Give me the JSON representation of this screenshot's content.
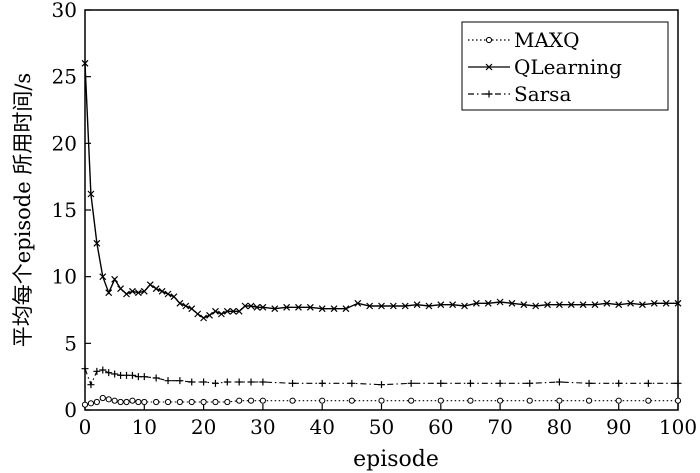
{
  "chart_data": {
    "type": "line",
    "title": "",
    "xlabel": "episode",
    "ylabel": "平均每个episode 所用时间/s",
    "xlim": [
      0,
      100
    ],
    "ylim": [
      0,
      30
    ],
    "xticks": [
      "0",
      "10",
      "20",
      "30",
      "40",
      "50",
      "60",
      "70",
      "80",
      "90",
      "100"
    ],
    "yticks": [
      "0",
      "5",
      "10",
      "15",
      "20",
      "25",
      "30"
    ],
    "grid": false,
    "legend_position": "top-right",
    "series": [
      {
        "name": "MAXQ",
        "marker": "circle",
        "dash": "dotted",
        "x": [
          0,
          1,
          2,
          3,
          4,
          5,
          6,
          7,
          8,
          9,
          10,
          12,
          14,
          16,
          18,
          20,
          22,
          24,
          26,
          28,
          30,
          35,
          40,
          45,
          50,
          55,
          60,
          65,
          70,
          75,
          80,
          85,
          90,
          95,
          100
        ],
        "y": [
          0.4,
          0.5,
          0.6,
          0.9,
          0.8,
          0.7,
          0.6,
          0.6,
          0.7,
          0.6,
          0.6,
          0.6,
          0.6,
          0.6,
          0.6,
          0.6,
          0.6,
          0.6,
          0.7,
          0.7,
          0.7,
          0.7,
          0.7,
          0.7,
          0.7,
          0.7,
          0.7,
          0.7,
          0.7,
          0.7,
          0.7,
          0.7,
          0.7,
          0.7,
          0.7
        ]
      },
      {
        "name": "QLearning",
        "marker": "x",
        "dash": "solid",
        "x": [
          0,
          1,
          2,
          3,
          4,
          5,
          6,
          7,
          8,
          9,
          10,
          11,
          12,
          13,
          14,
          15,
          16,
          17,
          18,
          19,
          20,
          21,
          22,
          23,
          24,
          25,
          26,
          27,
          28,
          29,
          30,
          32,
          34,
          36,
          38,
          40,
          42,
          44,
          46,
          48,
          50,
          52,
          54,
          56,
          58,
          60,
          62,
          64,
          66,
          68,
          70,
          72,
          74,
          76,
          78,
          80,
          82,
          84,
          86,
          88,
          90,
          92,
          94,
          96,
          98,
          100
        ],
        "y": [
          26.0,
          16.2,
          12.5,
          10.0,
          8.8,
          9.8,
          9.1,
          8.7,
          8.9,
          8.8,
          8.9,
          9.4,
          9.1,
          8.9,
          8.7,
          8.5,
          8.0,
          7.8,
          7.6,
          7.2,
          6.9,
          7.1,
          7.4,
          7.2,
          7.4,
          7.4,
          7.4,
          7.8,
          7.8,
          7.7,
          7.7,
          7.6,
          7.7,
          7.7,
          7.7,
          7.6,
          7.6,
          7.6,
          8.0,
          7.8,
          7.8,
          7.8,
          7.8,
          7.9,
          7.8,
          7.9,
          7.9,
          7.8,
          8.0,
          8.0,
          8.1,
          8.0,
          7.9,
          7.8,
          7.9,
          7.9,
          7.9,
          7.9,
          7.9,
          8.0,
          7.9,
          8.0,
          7.9,
          8.0,
          8.0,
          8.0
        ]
      },
      {
        "name": "Sarsa",
        "marker": "plus",
        "dash": "dashdot",
        "x": [
          0,
          1,
          2,
          3,
          4,
          5,
          6,
          7,
          8,
          9,
          10,
          12,
          14,
          16,
          18,
          20,
          22,
          24,
          26,
          28,
          30,
          35,
          40,
          45,
          50,
          55,
          60,
          65,
          70,
          75,
          80,
          85,
          90,
          95,
          100
        ],
        "y": [
          3.1,
          1.9,
          2.9,
          3.0,
          2.8,
          2.7,
          2.6,
          2.6,
          2.6,
          2.5,
          2.5,
          2.4,
          2.2,
          2.2,
          2.1,
          2.1,
          2.0,
          2.1,
          2.1,
          2.1,
          2.1,
          2.0,
          2.0,
          2.0,
          1.9,
          2.0,
          2.0,
          2.0,
          2.0,
          2.0,
          2.1,
          2.0,
          2.0,
          2.0,
          2.0
        ]
      }
    ]
  }
}
